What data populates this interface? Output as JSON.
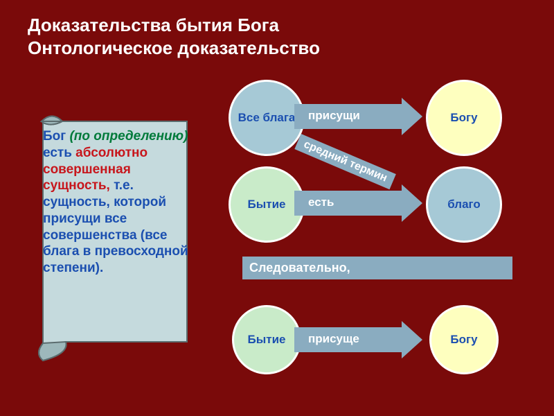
{
  "background_color": "#7a0a0a",
  "title": {
    "line1": "Доказательства бытия Бога",
    "line2": "Онтологическое доказательство",
    "color": "#ffffff",
    "fontsize": 26
  },
  "scroll": {
    "fill": "#c5dadd",
    "stroke": "#5b6c6e",
    "text": {
      "seg1": {
        "content": "Бог",
        "color": "#1b4fb0"
      },
      "seg2": {
        "content": " (по определению) ",
        "color": "#007a3a",
        "italic": true
      },
      "seg3": {
        "content": "есть",
        "color": "#1b4fb0"
      },
      "seg4": {
        "content": " абсолютно совершенная сущность, ",
        "color": "#c7161c"
      },
      "seg5": {
        "content": "т.е. сущность, которой присущи все совершенства (все блага в превосходной степени).",
        "color": "#1b4fb0"
      }
    },
    "fontsize": 19
  },
  "circles": {
    "blue_fill": "#a6c9d6",
    "green_fill": "#c9ebc9",
    "yellow_fill": "#feffbf",
    "size_large": 110,
    "size_small": 100,
    "fontsize": 17,
    "c1": {
      "label": "Все блага",
      "color_text": "#1b4fb0"
    },
    "c2": {
      "label": "Богу",
      "color_text": "#1b4fb0"
    },
    "c3": {
      "label": "Бытие",
      "color_text": "#1b4fb0"
    },
    "c4": {
      "label": "благо",
      "color_text": "#1b4fb0"
    },
    "c5": {
      "label": "Бытие",
      "color_text": "#1b4fb0"
    },
    "c6": {
      "label": "Богу",
      "color_text": "#1b4fb0"
    }
  },
  "arrows": {
    "color": "#8aacc0",
    "label_fontsize": 17,
    "a1": {
      "label": "присущи"
    },
    "a2": {
      "label": "есть"
    },
    "a3": {
      "label": "присуще"
    }
  },
  "diag": {
    "label": "средний термин",
    "bg": "#8aacc0",
    "fontsize": 16,
    "angle": 23
  },
  "conclusion": {
    "label": "Следовательно,",
    "bg": "#8aacc0",
    "fontsize": 18
  }
}
